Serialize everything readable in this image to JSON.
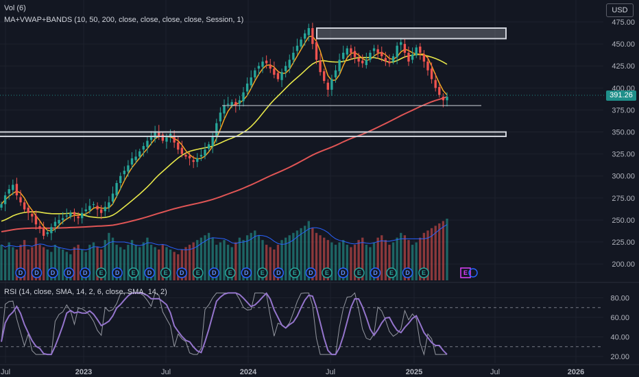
{
  "header": {
    "vol_label": "Vol (6)",
    "ma_label": "MA+VWAP+BANDS (10, 50, 200, close, close, close, close, Session, 1)",
    "rsi_label": "RSI (14, close, SMA, 14, 2, 6, close, SMA, 14, 2)",
    "currency": "USD"
  },
  "last_price": "391.26",
  "colors": {
    "background": "#131722",
    "grid": "#1e222d",
    "up": "#26a69a",
    "down": "#ef5350",
    "ma10": "#f5a623",
    "ma50": "#e8e84a",
    "ma200": "#e05555",
    "vwap": "#2962ff",
    "rsi": "#9575cd",
    "rsi_raw": "#9598a1",
    "box": "#d1d4dc",
    "divider": "#e040fb"
  },
  "chart_data": {
    "type": "candlestick",
    "x_axis": {
      "ticks": [
        "Jul",
        "2023",
        "Jul",
        "2024",
        "Jul",
        "2025",
        "Jul",
        "2026"
      ],
      "range": [
        "2022-06",
        "2026-03"
      ]
    },
    "price_axis": {
      "ticks": [
        "475.00",
        "450.00",
        "425.00",
        "400.00",
        "375.00",
        "350.00",
        "325.00",
        "300.00",
        "275.00",
        "250.00",
        "225.00",
        "200.00"
      ],
      "range": [
        185,
        480
      ]
    },
    "rsi_axis": {
      "ticks": [
        "80.00",
        "60.00",
        "40.00",
        "20.00"
      ],
      "range": [
        15,
        90
      ],
      "bands": [
        70,
        30
      ]
    },
    "weekly_close": [
      268,
      278,
      285,
      290,
      278,
      270,
      262,
      258,
      254,
      245,
      240,
      232,
      236,
      242,
      248,
      250,
      252,
      255,
      258,
      256,
      252,
      258,
      262,
      266,
      268,
      262,
      258,
      265,
      270,
      280,
      292,
      300,
      306,
      312,
      320,
      322,
      328,
      334,
      340,
      345,
      350,
      345,
      340,
      344,
      348,
      338,
      330,
      325,
      322,
      320,
      316,
      320,
      324,
      330,
      336,
      345,
      360,
      372,
      380,
      382,
      384,
      380,
      386,
      395,
      405,
      412,
      420,
      425,
      430,
      428,
      422,
      415,
      410,
      418,
      425,
      432,
      440,
      448,
      455,
      462,
      468,
      450,
      432,
      418,
      408,
      398,
      410,
      420,
      432,
      440,
      445,
      440,
      435,
      430,
      428,
      432,
      440,
      445,
      440,
      436,
      430,
      428,
      436,
      448,
      452,
      440,
      430,
      438,
      446,
      440,
      430,
      420,
      410,
      400,
      392,
      386,
      390
    ],
    "volume_weekly": [
      30,
      26,
      32,
      28,
      26,
      30,
      34,
      26,
      28,
      36,
      30,
      28,
      26,
      24,
      30,
      28,
      26,
      24,
      22,
      28,
      30,
      26,
      24,
      30,
      32,
      28,
      26,
      34,
      40,
      36,
      30,
      28,
      26,
      30,
      34,
      30,
      28,
      32,
      36,
      30,
      28,
      26,
      30,
      28,
      26,
      24,
      22,
      26,
      28,
      30,
      32,
      34,
      36,
      38,
      40,
      36,
      30,
      32,
      34,
      30,
      28,
      32,
      36,
      34,
      38,
      40,
      42,
      38,
      34,
      30,
      28,
      26,
      30,
      34,
      36,
      38,
      40,
      42,
      44,
      46,
      50,
      44,
      40,
      38,
      36,
      34,
      32,
      30,
      32,
      34,
      30,
      28,
      30,
      34,
      36,
      30,
      28,
      32,
      36,
      38,
      34,
      30,
      32,
      36,
      40,
      38,
      34,
      30,
      32,
      36,
      40,
      42,
      44,
      46,
      48,
      50,
      52
    ],
    "volume_unit": "millions (approx.)",
    "annotations": {
      "resistance_zone": [
        456,
        468
      ],
      "support_zone": [
        345,
        350
      ],
      "support_line": 380
    },
    "earnings_markers": [
      "D",
      "D",
      "D",
      "D",
      "D",
      "E",
      "D",
      "E",
      "D",
      "E",
      "D",
      "E",
      "D",
      "E",
      "D",
      "E",
      "D",
      "E",
      "D",
      "E",
      "D",
      "E",
      "D",
      "E",
      "D",
      "E"
    ],
    "future_marker": "E"
  }
}
